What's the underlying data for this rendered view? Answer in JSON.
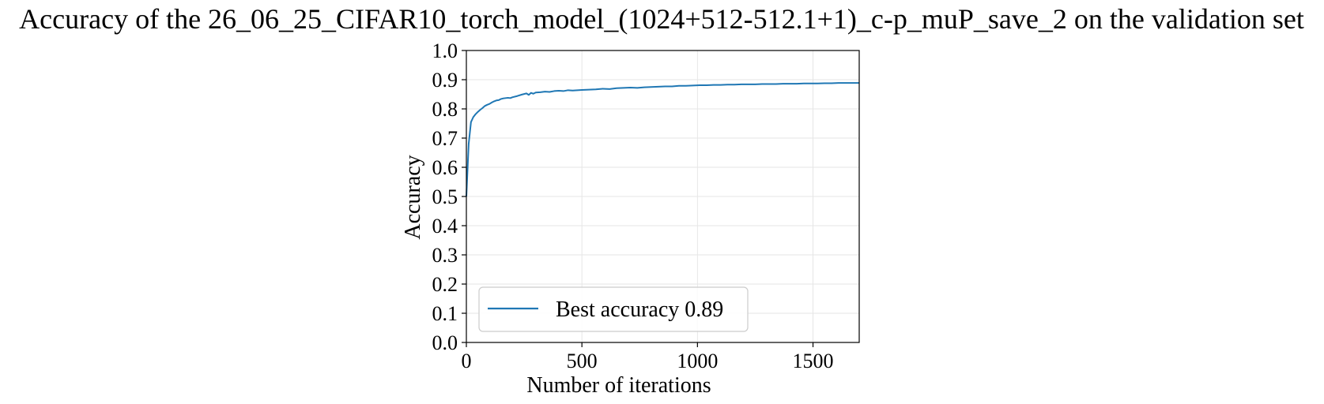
{
  "chart_data": {
    "type": "line",
    "title": "Accuracy of the 26_06_25_CIFAR10_torch_model_(1024+512-512.1+1)_c-p_muP_save_2 on the validation set",
    "xlabel": "Number of iterations",
    "ylabel": "Accuracy",
    "xlim": [
      0,
      1700
    ],
    "ylim": [
      0.0,
      1.0
    ],
    "xticks": [
      0,
      500,
      1000,
      1500
    ],
    "xtick_labels": [
      "0",
      "500",
      "1000",
      "1500"
    ],
    "yticks": [
      0.0,
      0.1,
      0.2,
      0.3,
      0.4,
      0.5,
      0.6,
      0.7,
      0.8,
      0.9,
      1.0
    ],
    "ytick_labels": [
      "0.0",
      "0.1",
      "0.2",
      "0.3",
      "0.4",
      "0.5",
      "0.6",
      "0.7",
      "0.8",
      "0.9",
      "1.0"
    ],
    "grid": true,
    "legend_position": "lower-left",
    "series_color": "#1f77b4",
    "series": [
      {
        "name": "Best accuracy 0.89",
        "x": [
          0,
          10,
          20,
          30,
          40,
          50,
          60,
          70,
          80,
          90,
          100,
          110,
          120,
          130,
          140,
          150,
          160,
          170,
          180,
          190,
          200,
          220,
          240,
          260,
          270,
          280,
          290,
          300,
          320,
          340,
          360,
          380,
          400,
          420,
          440,
          460,
          480,
          500,
          530,
          560,
          590,
          620,
          650,
          680,
          710,
          740,
          770,
          800,
          830,
          860,
          890,
          920,
          950,
          980,
          1010,
          1040,
          1070,
          1100,
          1130,
          1160,
          1190,
          1220,
          1250,
          1280,
          1310,
          1340,
          1370,
          1400,
          1430,
          1460,
          1490,
          1520,
          1550,
          1580,
          1610,
          1640,
          1670,
          1700
        ],
        "values": [
          0.5,
          0.68,
          0.755,
          0.772,
          0.782,
          0.79,
          0.797,
          0.803,
          0.81,
          0.814,
          0.817,
          0.822,
          0.826,
          0.829,
          0.83,
          0.834,
          0.836,
          0.837,
          0.838,
          0.837,
          0.84,
          0.844,
          0.849,
          0.853,
          0.848,
          0.855,
          0.852,
          0.856,
          0.857,
          0.859,
          0.858,
          0.861,
          0.862,
          0.861,
          0.864,
          0.863,
          0.864,
          0.865,
          0.866,
          0.867,
          0.869,
          0.868,
          0.871,
          0.872,
          0.873,
          0.872,
          0.874,
          0.875,
          0.876,
          0.877,
          0.877,
          0.879,
          0.879,
          0.88,
          0.881,
          0.881,
          0.882,
          0.882,
          0.883,
          0.883,
          0.884,
          0.884,
          0.884,
          0.885,
          0.885,
          0.885,
          0.886,
          0.886,
          0.886,
          0.887,
          0.887,
          0.887,
          0.888,
          0.888,
          0.889,
          0.889,
          0.889,
          0.889
        ]
      }
    ]
  }
}
